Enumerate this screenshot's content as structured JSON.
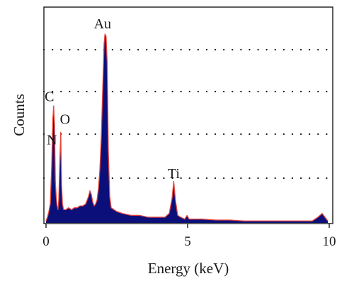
{
  "chart_data": {
    "type": "area",
    "title": "",
    "xlabel": "Energy (keV)",
    "ylabel": "Counts",
    "xlim": [
      0,
      10
    ],
    "ylim": [
      0,
      100
    ],
    "xticks": [
      0,
      5,
      10
    ],
    "x_tick_labels": [
      "0",
      "5",
      "10"
    ],
    "grid": "horizontal dotted",
    "colors": {
      "fill": "#0b0f7a",
      "outline": "#e8453c"
    },
    "annotations": [
      {
        "label": "C",
        "x": 0.27,
        "y": 60
      },
      {
        "label": "N",
        "x": 0.36,
        "y": 40
      },
      {
        "label": "O",
        "x": 0.52,
        "y": 48
      },
      {
        "label": "Au",
        "x": 2.12,
        "y": 100
      },
      {
        "label": "Ti",
        "x": 4.51,
        "y": 20
      }
    ],
    "series": [
      {
        "x": [
          0.0,
          0.05,
          0.1,
          0.15,
          0.2,
          0.24,
          0.27,
          0.3,
          0.33,
          0.36,
          0.39,
          0.42,
          0.45,
          0.48,
          0.52,
          0.55,
          0.58,
          0.62,
          0.7,
          0.8,
          0.9,
          1.0,
          1.1,
          1.2,
          1.3,
          1.4,
          1.5,
          1.55,
          1.6,
          1.65,
          1.7,
          1.75,
          1.8,
          1.85,
          1.9,
          1.95,
          2.0,
          2.05,
          2.08,
          2.12,
          2.16,
          2.2,
          2.25,
          2.3,
          2.4,
          2.5,
          2.7,
          3.0,
          3.3,
          3.6,
          3.9,
          4.2,
          4.35,
          4.45,
          4.51,
          4.57,
          4.65,
          4.75,
          4.9,
          4.98,
          5.05,
          5.2,
          5.5,
          6.0,
          6.5,
          7.0,
          7.5,
          8.0,
          8.5,
          9.0,
          9.4,
          9.6,
          9.75,
          9.85,
          9.95
        ],
        "values": [
          1,
          3,
          6,
          10,
          30,
          55,
          62,
          52,
          22,
          14,
          9,
          7,
          12,
          30,
          48,
          20,
          10,
          7,
          7,
          8,
          7,
          8,
          8,
          9,
          9,
          10,
          14,
          17,
          15,
          11,
          9,
          10,
          12,
          18,
          28,
          45,
          70,
          95,
          100,
          99,
          85,
          38,
          14,
          8,
          7,
          6,
          5,
          4,
          4,
          3,
          3,
          3,
          5,
          13,
          22,
          12,
          4,
          3,
          2,
          4,
          2,
          2,
          2,
          1.5,
          1.5,
          1,
          1,
          1,
          1,
          1,
          1,
          3,
          5,
          3,
          1
        ]
      }
    ]
  }
}
